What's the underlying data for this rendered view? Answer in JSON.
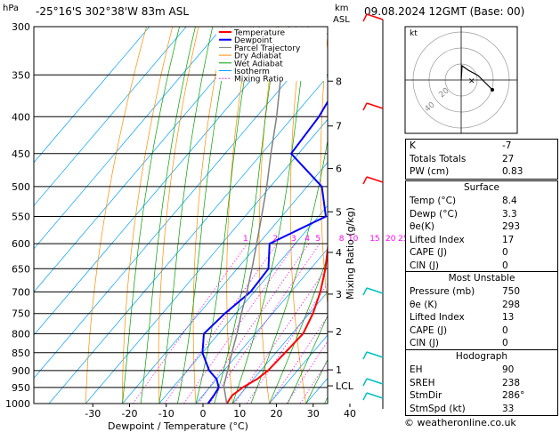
{
  "header": {
    "location": "-25°16'S  302°38'W  83m  ASL",
    "datetime": "09.08.2024  12GMT  (Base: 00)",
    "pressure_unit": "hPa",
    "height_unit_km": "km",
    "height_unit_asl": "ASL"
  },
  "chart_data": {
    "type": "line",
    "xlabel": "Dewpoint / Temperature (°C)",
    "ylabel": "Mixing Ratio (g/kg)",
    "x_ticks": [
      -30,
      -20,
      -10,
      0,
      10,
      20,
      30,
      40
    ],
    "pressure_levels": [
      300,
      350,
      400,
      450,
      500,
      550,
      600,
      650,
      700,
      750,
      800,
      850,
      900,
      950,
      1000
    ],
    "height_ticks_km": [
      {
        "label": "8",
        "p": 357
      },
      {
        "label": "7",
        "p": 412
      },
      {
        "label": "6",
        "p": 472
      },
      {
        "label": "5",
        "p": 542
      },
      {
        "label": "4",
        "p": 617
      },
      {
        "label": "3",
        "p": 705
      },
      {
        "label": "2",
        "p": 795
      },
      {
        "label": "1",
        "p": 898
      },
      {
        "label": "LCL",
        "p": 945
      }
    ],
    "mixing_ratio_labels": [
      "1",
      "2",
      "3",
      "4",
      "5",
      "8",
      "10",
      "15",
      "20",
      "25"
    ],
    "mixing_ratio_values": [
      1,
      2,
      3,
      4,
      5,
      8,
      10,
      15,
      20,
      25
    ],
    "legend": [
      "Temperature",
      "Dewpoint",
      "Parcel Trajectory",
      "Dry Adiabat",
      "Wet Adiabat",
      "Isotherm",
      "Mixing Ratio"
    ],
    "legend_colors": [
      "#ff0000",
      "#0000ff",
      "#808080",
      "#ff8c00",
      "#00a000",
      "#00a0ff",
      "#ff00ff"
    ],
    "series": [
      {
        "name": "Temperature",
        "points": [
          [
            1000,
            8.4
          ],
          [
            975,
            8.0
          ],
          [
            950,
            9.0
          ],
          [
            925,
            11.0
          ],
          [
            900,
            12.0
          ],
          [
            850,
            12.5
          ],
          [
            800,
            13.0
          ],
          [
            750,
            11.0
          ],
          [
            700,
            8.0
          ],
          [
            650,
            4.0
          ],
          [
            600,
            -1.0
          ],
          [
            550,
            -5.5
          ],
          [
            500,
            -10.0
          ],
          [
            450,
            -13.0
          ],
          [
            400,
            -19.0
          ],
          [
            350,
            -26.5
          ],
          [
            300,
            -35.5
          ]
        ]
      },
      {
        "name": "Dewpoint",
        "points": [
          [
            1000,
            3.3
          ],
          [
            975,
            3.0
          ],
          [
            950,
            2.5
          ],
          [
            925,
            0.0
          ],
          [
            900,
            -4.0
          ],
          [
            850,
            -10.0
          ],
          [
            800,
            -14.0
          ],
          [
            750,
            -13.0
          ],
          [
            700,
            -11.0
          ],
          [
            650,
            -11.5
          ],
          [
            600,
            -17.0
          ],
          [
            550,
            -8.0
          ],
          [
            500,
            -16.0
          ],
          [
            450,
            -32.0
          ],
          [
            400,
            -33.0
          ],
          [
            350,
            -36.0
          ],
          [
            300,
            -48.0
          ]
        ]
      },
      {
        "name": "Parcel Trajectory",
        "points": [
          [
            1000,
            8.4
          ],
          [
            945,
            3.5
          ],
          [
            900,
            1.0
          ],
          [
            850,
            -2.0
          ],
          [
            800,
            -5.0
          ],
          [
            750,
            -8.5
          ],
          [
            700,
            -12.0
          ],
          [
            650,
            -16.0
          ],
          [
            600,
            -20.5
          ],
          [
            550,
            -25.5
          ],
          [
            500,
            -31.0
          ],
          [
            450,
            -37.5
          ],
          [
            400,
            -44.5
          ],
          [
            350,
            -53.0
          ],
          [
            300,
            -62.0
          ]
        ]
      }
    ]
  },
  "hodograph": {
    "label": "kt",
    "ring_labels": [
      "20",
      "40"
    ]
  },
  "indices": {
    "rows": [
      {
        "label": "K",
        "value": "-7"
      },
      {
        "label": "Totals Totals",
        "value": "27"
      },
      {
        "label": "PW (cm)",
        "value": "0.83"
      }
    ]
  },
  "surface": {
    "title": "Surface",
    "rows": [
      {
        "label": "Temp (°C)",
        "value": "8.4"
      },
      {
        "label": "Dewp (°C)",
        "value": "3.3"
      },
      {
        "label": "θe(K)",
        "value": "293"
      },
      {
        "label": "Lifted Index",
        "value": "17"
      },
      {
        "label": "CAPE (J)",
        "value": "0"
      },
      {
        "label": "CIN (J)",
        "value": "0"
      }
    ]
  },
  "unstable": {
    "title": "Most Unstable",
    "rows": [
      {
        "label": "Pressure (mb)",
        "value": "750"
      },
      {
        "label": "θe (K)",
        "value": "298"
      },
      {
        "label": "Lifted Index",
        "value": "13"
      },
      {
        "label": "CAPE (J)",
        "value": "0"
      },
      {
        "label": "CIN (J)",
        "value": "0"
      }
    ]
  },
  "hodo_table": {
    "title": "Hodograph",
    "rows": [
      {
        "label": "EH",
        "value": "90"
      },
      {
        "label": "SREH",
        "value": "238"
      },
      {
        "label": "StmDir",
        "value": "286°"
      },
      {
        "label": "StmSpd (kt)",
        "value": "33"
      }
    ]
  },
  "footer": {
    "credit": "© weatheronline.co.uk"
  }
}
